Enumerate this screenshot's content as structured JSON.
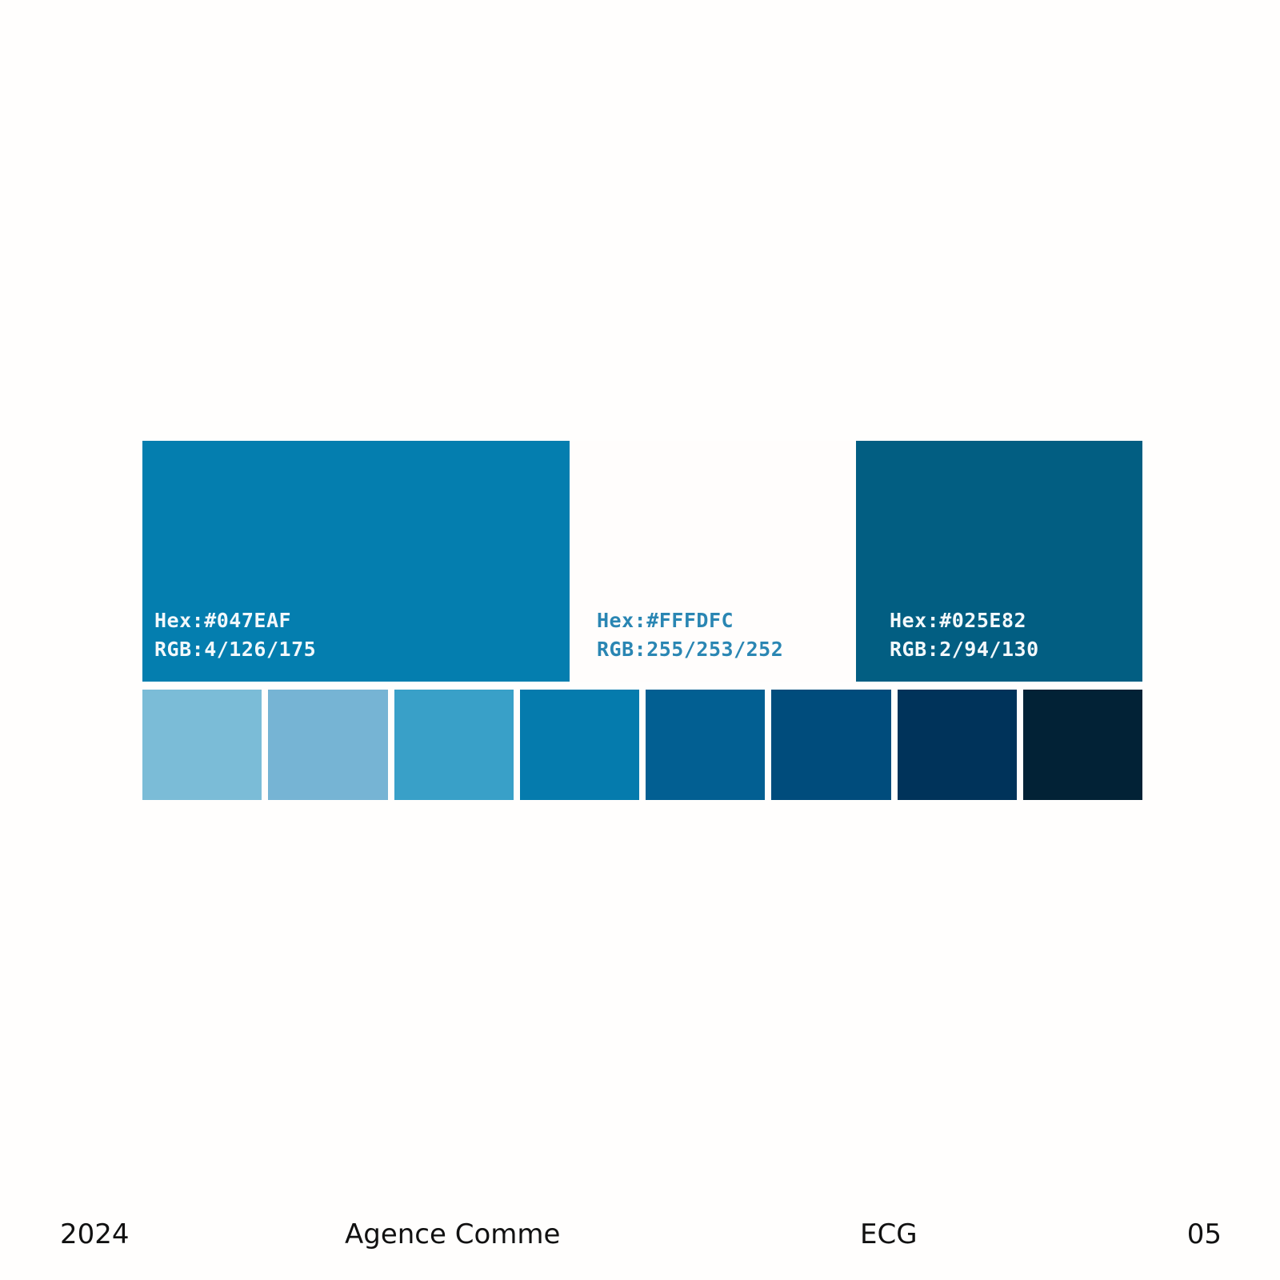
{
  "palette": {
    "primary": [
      {
        "hex_label": "Hex:#047EAF",
        "rgb_label": "RGB:4/126/175",
        "color": "#047EAF",
        "text_color": "#f2f8fb"
      },
      {
        "hex_label": "Hex:#FFFDFC",
        "rgb_label": "RGB:255/253/252",
        "color": "#FFFDFC",
        "text_color": "#2a86b3"
      },
      {
        "hex_label": "Hex:#025E82",
        "rgb_label": "RGB:2/94/130",
        "color": "#025E82",
        "text_color": "#f2f8fb"
      }
    ],
    "tints": [
      {
        "color": "#7BBCD7"
      },
      {
        "color": "#76B4D4"
      },
      {
        "color": "#39A0C8"
      },
      {
        "color": "#057BAD"
      },
      {
        "color": "#025F92"
      },
      {
        "color": "#004C7C"
      },
      {
        "color": "#00335A"
      },
      {
        "color": "#022236"
      }
    ]
  },
  "footer": {
    "year": "2024",
    "agency": "Agence Comme",
    "project": "ECG",
    "page": "05"
  }
}
